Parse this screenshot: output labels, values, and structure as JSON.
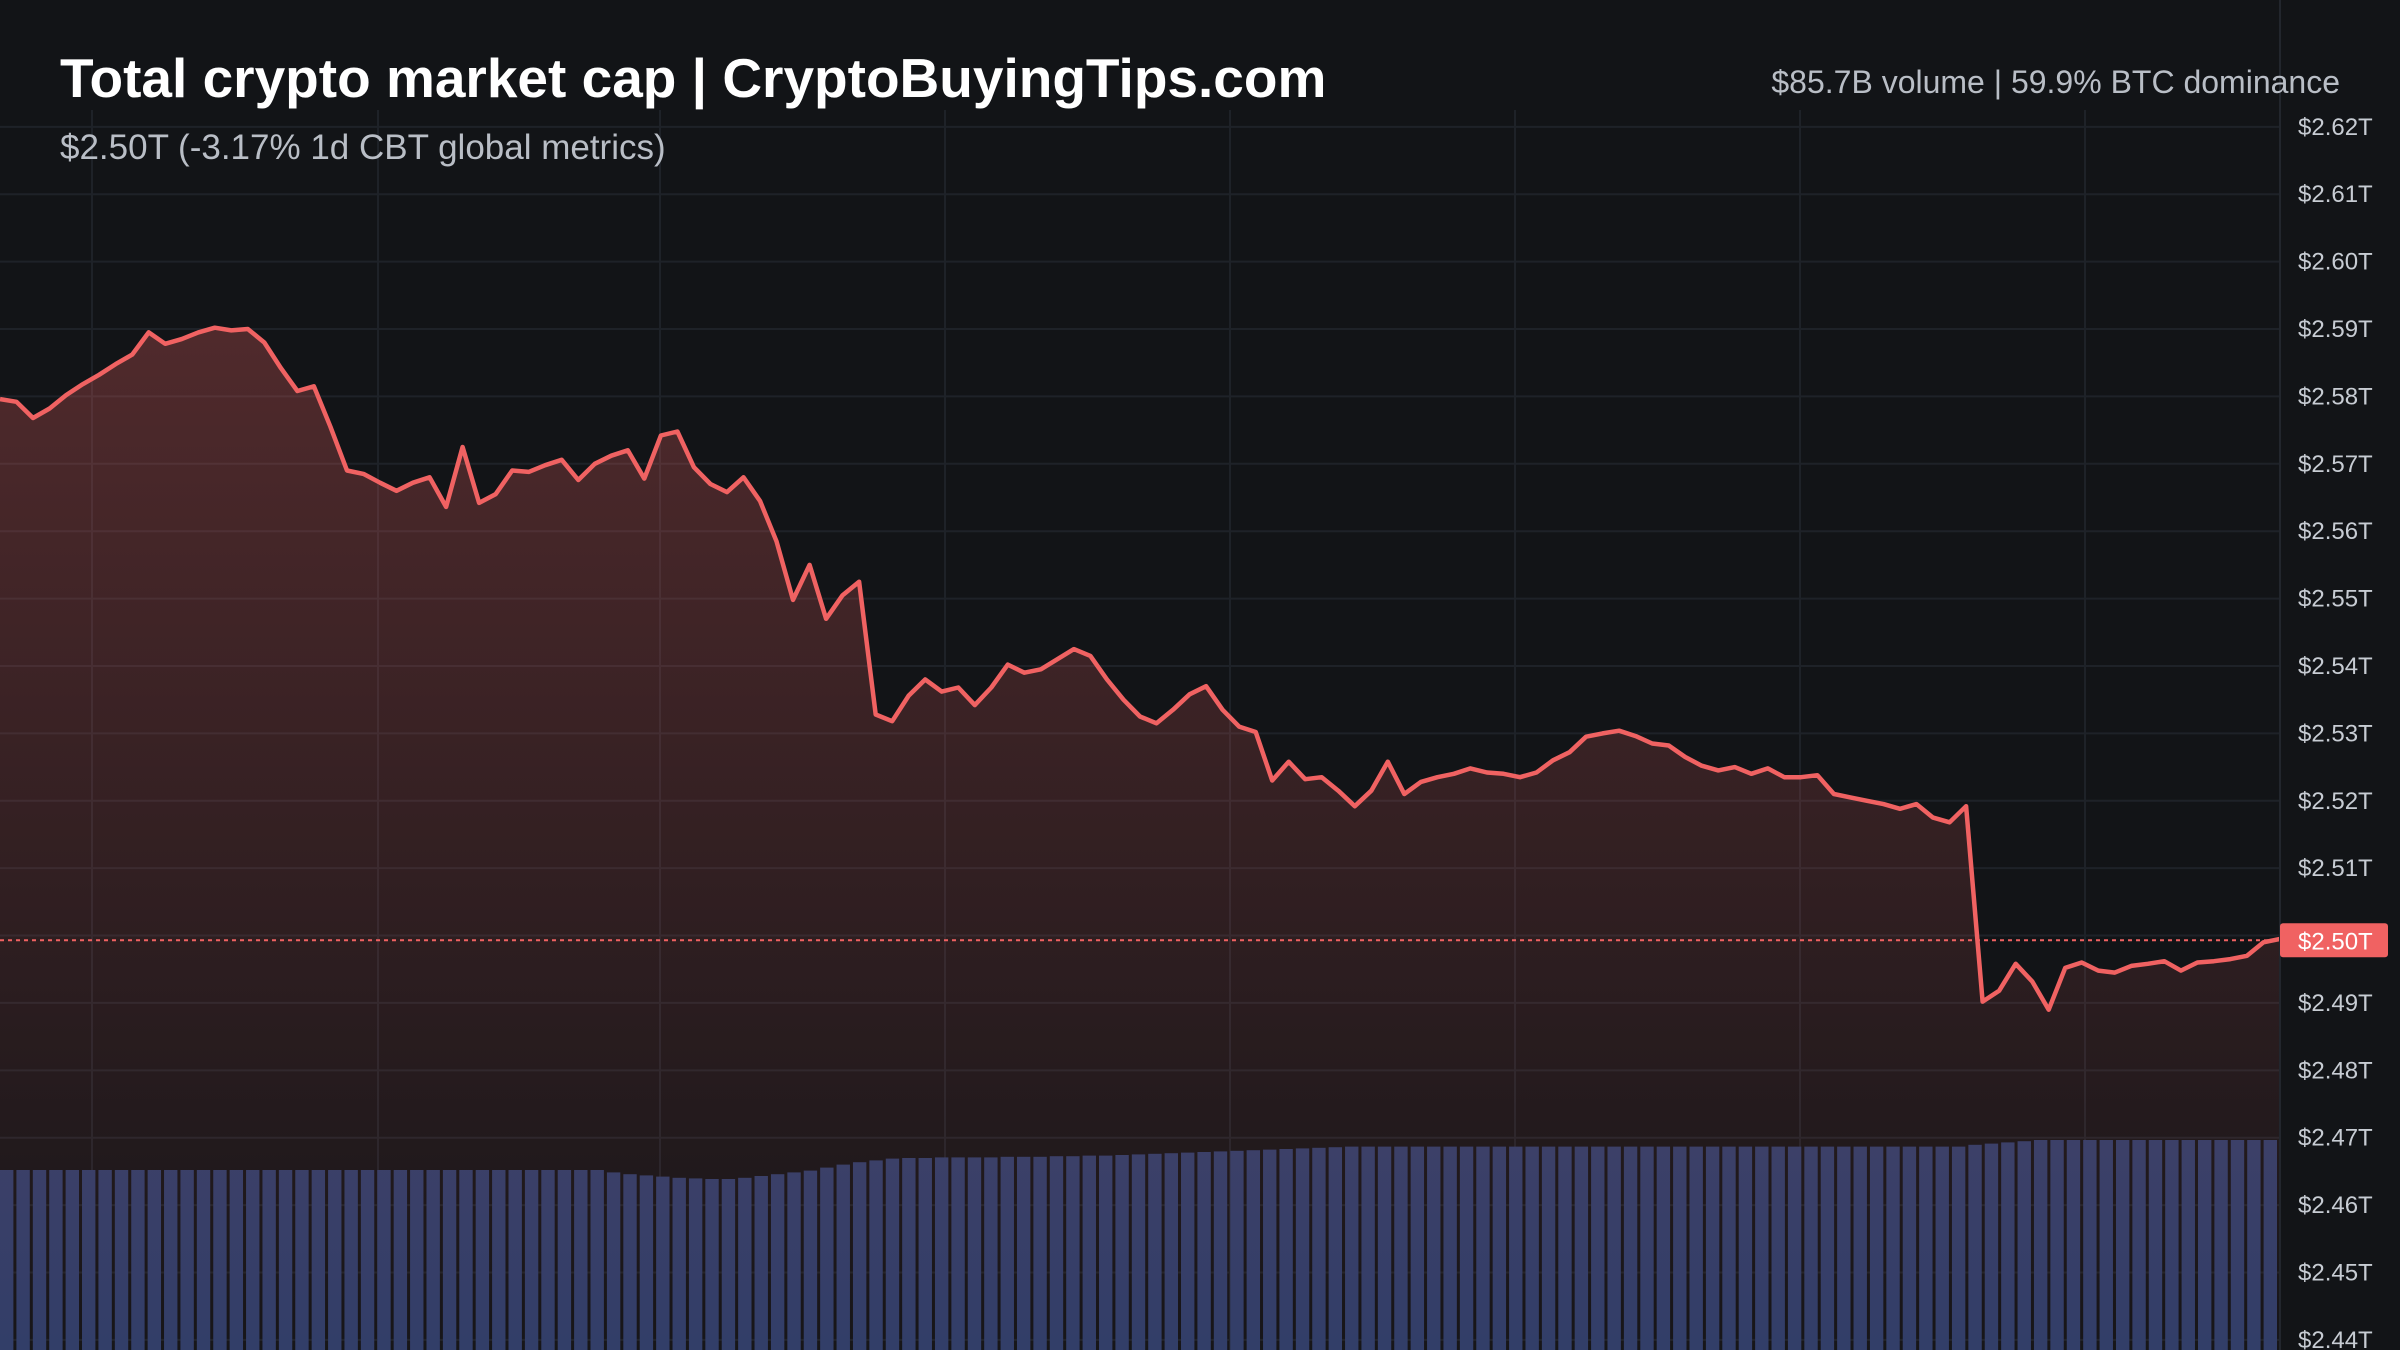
{
  "header": {
    "title": "Total crypto market cap | CryptoBuyingTips.com",
    "subtitle": "$2.50T (-3.17% 1d CBT global metrics)",
    "stats": "$85.7B volume | 59.9% BTC dominance"
  },
  "colors": {
    "background": "#121417",
    "line": "#f06262",
    "price_label_bg": "#f06262",
    "volume_bars": "#2e3d68",
    "grid": "#1e2228",
    "axis_text": "#c7ccd3"
  },
  "chart_data": {
    "type": "line",
    "title": "Total crypto market cap | CryptoBuyingTips.com",
    "ylabel": "",
    "xlabel": "",
    "ylim": [
      2.4385,
      2.6225
    ],
    "y_unit": "T",
    "y_ticks": [
      "$2.62T",
      "$2.61T",
      "$2.60T",
      "$2.59T",
      "$2.58T",
      "$2.57T",
      "$2.56T",
      "$2.55T",
      "$2.54T",
      "$2.53T",
      "$2.52T",
      "$2.51T",
      "$2.50T",
      "$2.49T",
      "$2.48T",
      "$2.47T",
      "$2.46T",
      "$2.45T",
      "$2.44T"
    ],
    "y_tick_values": [
      2.62,
      2.61,
      2.6,
      2.59,
      2.58,
      2.57,
      2.56,
      2.55,
      2.54,
      2.53,
      2.52,
      2.51,
      2.5,
      2.49,
      2.48,
      2.47,
      2.46,
      2.45,
      2.44
    ],
    "current_value": 2.4993,
    "current_label": "$2.50T",
    "grid": true,
    "series": [
      {
        "values": [
          2.5796,
          2.5792,
          2.5768,
          2.5782,
          2.5802,
          2.5818,
          2.5832,
          2.5848,
          2.5862,
          2.5895,
          2.5878,
          2.5885,
          2.5895,
          2.5902,
          2.5898,
          2.59,
          2.588,
          2.5842,
          2.5808,
          2.5815,
          2.5755,
          2.569,
          2.5685,
          2.5672,
          2.566,
          2.5672,
          2.568,
          2.5636,
          2.5725,
          2.5642,
          2.5655,
          2.569,
          2.5688,
          2.5698,
          2.5706,
          2.5676,
          2.57,
          2.5712,
          2.572,
          2.5678,
          2.5742,
          2.5748,
          2.5695,
          2.567,
          2.5658,
          2.568,
          2.5645,
          2.5585,
          2.5498,
          2.555,
          2.547,
          2.5505,
          2.5525,
          2.5328,
          2.5318,
          2.5356,
          2.538,
          2.5362,
          2.5368,
          2.5342,
          2.5368,
          2.5402,
          2.539,
          2.5395,
          2.541,
          2.5425,
          2.5415,
          2.538,
          2.535,
          2.5325,
          2.5315,
          2.5335,
          2.5358,
          2.537,
          2.5335,
          2.531,
          2.5302,
          2.523,
          2.5258,
          2.5232,
          2.5235,
          2.5215,
          2.5192,
          2.5215,
          2.5258,
          2.521,
          2.5228,
          2.5235,
          2.524,
          2.5248,
          2.5242,
          2.524,
          2.5235,
          2.5242,
          2.526,
          2.5272,
          2.5295,
          2.53,
          2.5304,
          2.5296,
          2.5285,
          2.5282,
          2.5265,
          2.5252,
          2.5245,
          2.525,
          2.524,
          2.5248,
          2.5235,
          2.5235,
          2.5238,
          2.521,
          2.5205,
          2.52,
          2.5195,
          2.5188,
          2.5195,
          2.5175,
          2.5168,
          2.5192,
          2.4902,
          2.4918,
          2.4958,
          2.4932,
          2.489,
          2.4952,
          2.496,
          2.4948,
          2.4945,
          2.4955,
          2.4958,
          2.4962,
          2.4948,
          2.496,
          2.4962,
          2.4965,
          2.497,
          2.499,
          2.4995
        ]
      }
    ],
    "volume": {
      "values": [
        30.0,
        30.0,
        30.0,
        30.0,
        30.0,
        30.0,
        30.0,
        30.0,
        30.0,
        30.0,
        30.0,
        30.0,
        30.0,
        30.0,
        30.0,
        30.0,
        30.0,
        30.0,
        30.0,
        30.0,
        30.0,
        30.0,
        30.0,
        30.0,
        30.0,
        30.0,
        30.0,
        30.0,
        30.0,
        30.0,
        30.0,
        30.0,
        30.0,
        30.0,
        30.0,
        30.0,
        30.0,
        29.6,
        29.3,
        29.1,
        28.9,
        28.7,
        28.6,
        28.5,
        28.5,
        28.7,
        29.0,
        29.3,
        29.6,
        29.9,
        30.4,
        30.9,
        31.3,
        31.6,
        31.9,
        32.0,
        32.0,
        32.1,
        32.1,
        32.1,
        32.1,
        32.2,
        32.2,
        32.2,
        32.3,
        32.3,
        32.4,
        32.4,
        32.5,
        32.6,
        32.7,
        32.8,
        32.9,
        33.0,
        33.1,
        33.2,
        33.3,
        33.4,
        33.5,
        33.6,
        33.7,
        33.8,
        33.9,
        33.9,
        33.9,
        33.9,
        33.9,
        33.9,
        33.9,
        33.9,
        33.9,
        33.9,
        33.9,
        33.9,
        33.9,
        33.9,
        33.9,
        33.9,
        33.9,
        33.9,
        33.9,
        33.9,
        33.9,
        33.9,
        33.9,
        33.9,
        33.9,
        33.9,
        33.9,
        33.9,
        33.9,
        33.9,
        33.9,
        33.9,
        33.9,
        33.9,
        33.9,
        33.9,
        33.9,
        33.9,
        34.2,
        34.4,
        34.6,
        34.8,
        35.0,
        35.0,
        35.0,
        35.0,
        35.0,
        35.0,
        35.0,
        35.0,
        35.0,
        35.0,
        35.0,
        35.0,
        35.0,
        35.0,
        35.0
      ]
    }
  }
}
